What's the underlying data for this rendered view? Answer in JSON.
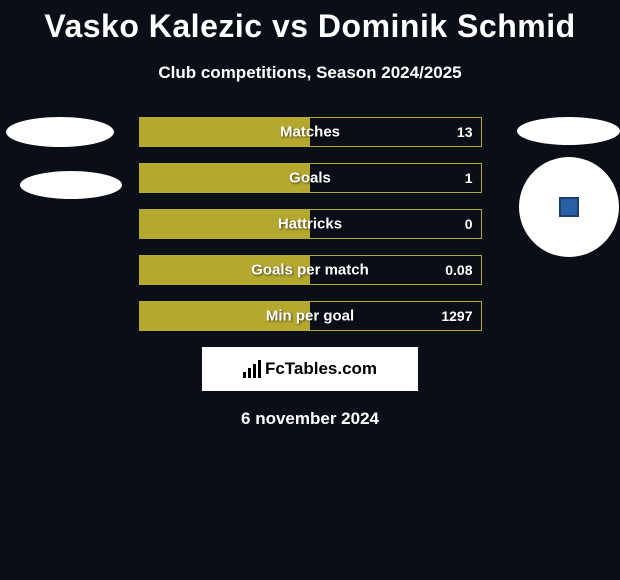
{
  "title": "Vasko Kalezic vs Dominik Schmid",
  "subtitle": "Club competitions, Season 2024/2025",
  "stats": [
    {
      "label": "Matches",
      "value": "13",
      "fill_pct": 50
    },
    {
      "label": "Goals",
      "value": "1",
      "fill_pct": 50
    },
    {
      "label": "Hattricks",
      "value": "0",
      "fill_pct": 50
    },
    {
      "label": "Goals per match",
      "value": "0.08",
      "fill_pct": 50
    },
    {
      "label": "Min per goal",
      "value": "1297",
      "fill_pct": 50
    }
  ],
  "logo_text": "FcTables.com",
  "date": "6 november 2024",
  "colors": {
    "background": "#0a0e17",
    "bar_fill": "#b5a82f",
    "bar_border": "#b5a82f",
    "text": "#ffffff",
    "blue_accent": "#2a5fa8"
  }
}
